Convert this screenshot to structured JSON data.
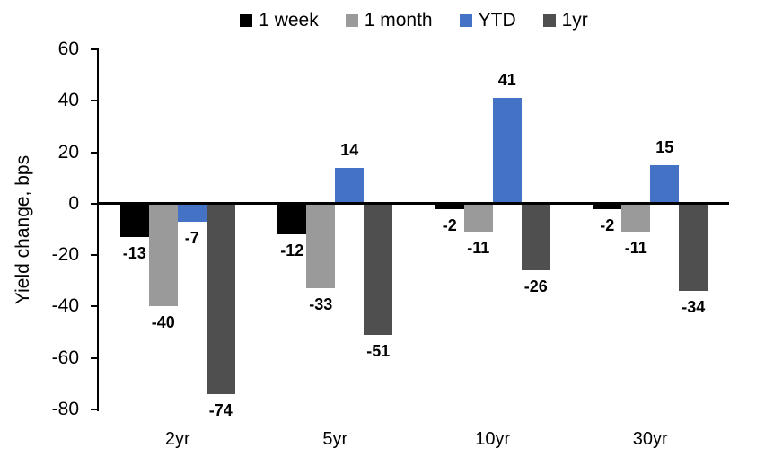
{
  "chart_data": {
    "type": "bar",
    "title": "",
    "xlabel": "",
    "ylabel": "Yield change, bps",
    "categories": [
      "2yr",
      "5yr",
      "10yr",
      "30yr"
    ],
    "series": [
      {
        "name": "1 week",
        "color": "#000000",
        "values": [
          -13,
          -12,
          -2,
          -2
        ]
      },
      {
        "name": "1 month",
        "color": "#9a9a9a",
        "values": [
          -40,
          -33,
          -11,
          -11
        ]
      },
      {
        "name": "YTD",
        "color": "#4472c4",
        "values": [
          -7,
          14,
          41,
          15
        ]
      },
      {
        "name": "1yr",
        "color": "#4f4f4f",
        "values": [
          -74,
          -51,
          -26,
          -34
        ]
      }
    ],
    "ylim": [
      -80,
      60
    ],
    "yticks": [
      60,
      40,
      20,
      0,
      -20,
      -40,
      -60,
      -80
    ],
    "grid": false,
    "legend_position": "top-center",
    "data_labels": true,
    "axis_color": "#000000"
  }
}
